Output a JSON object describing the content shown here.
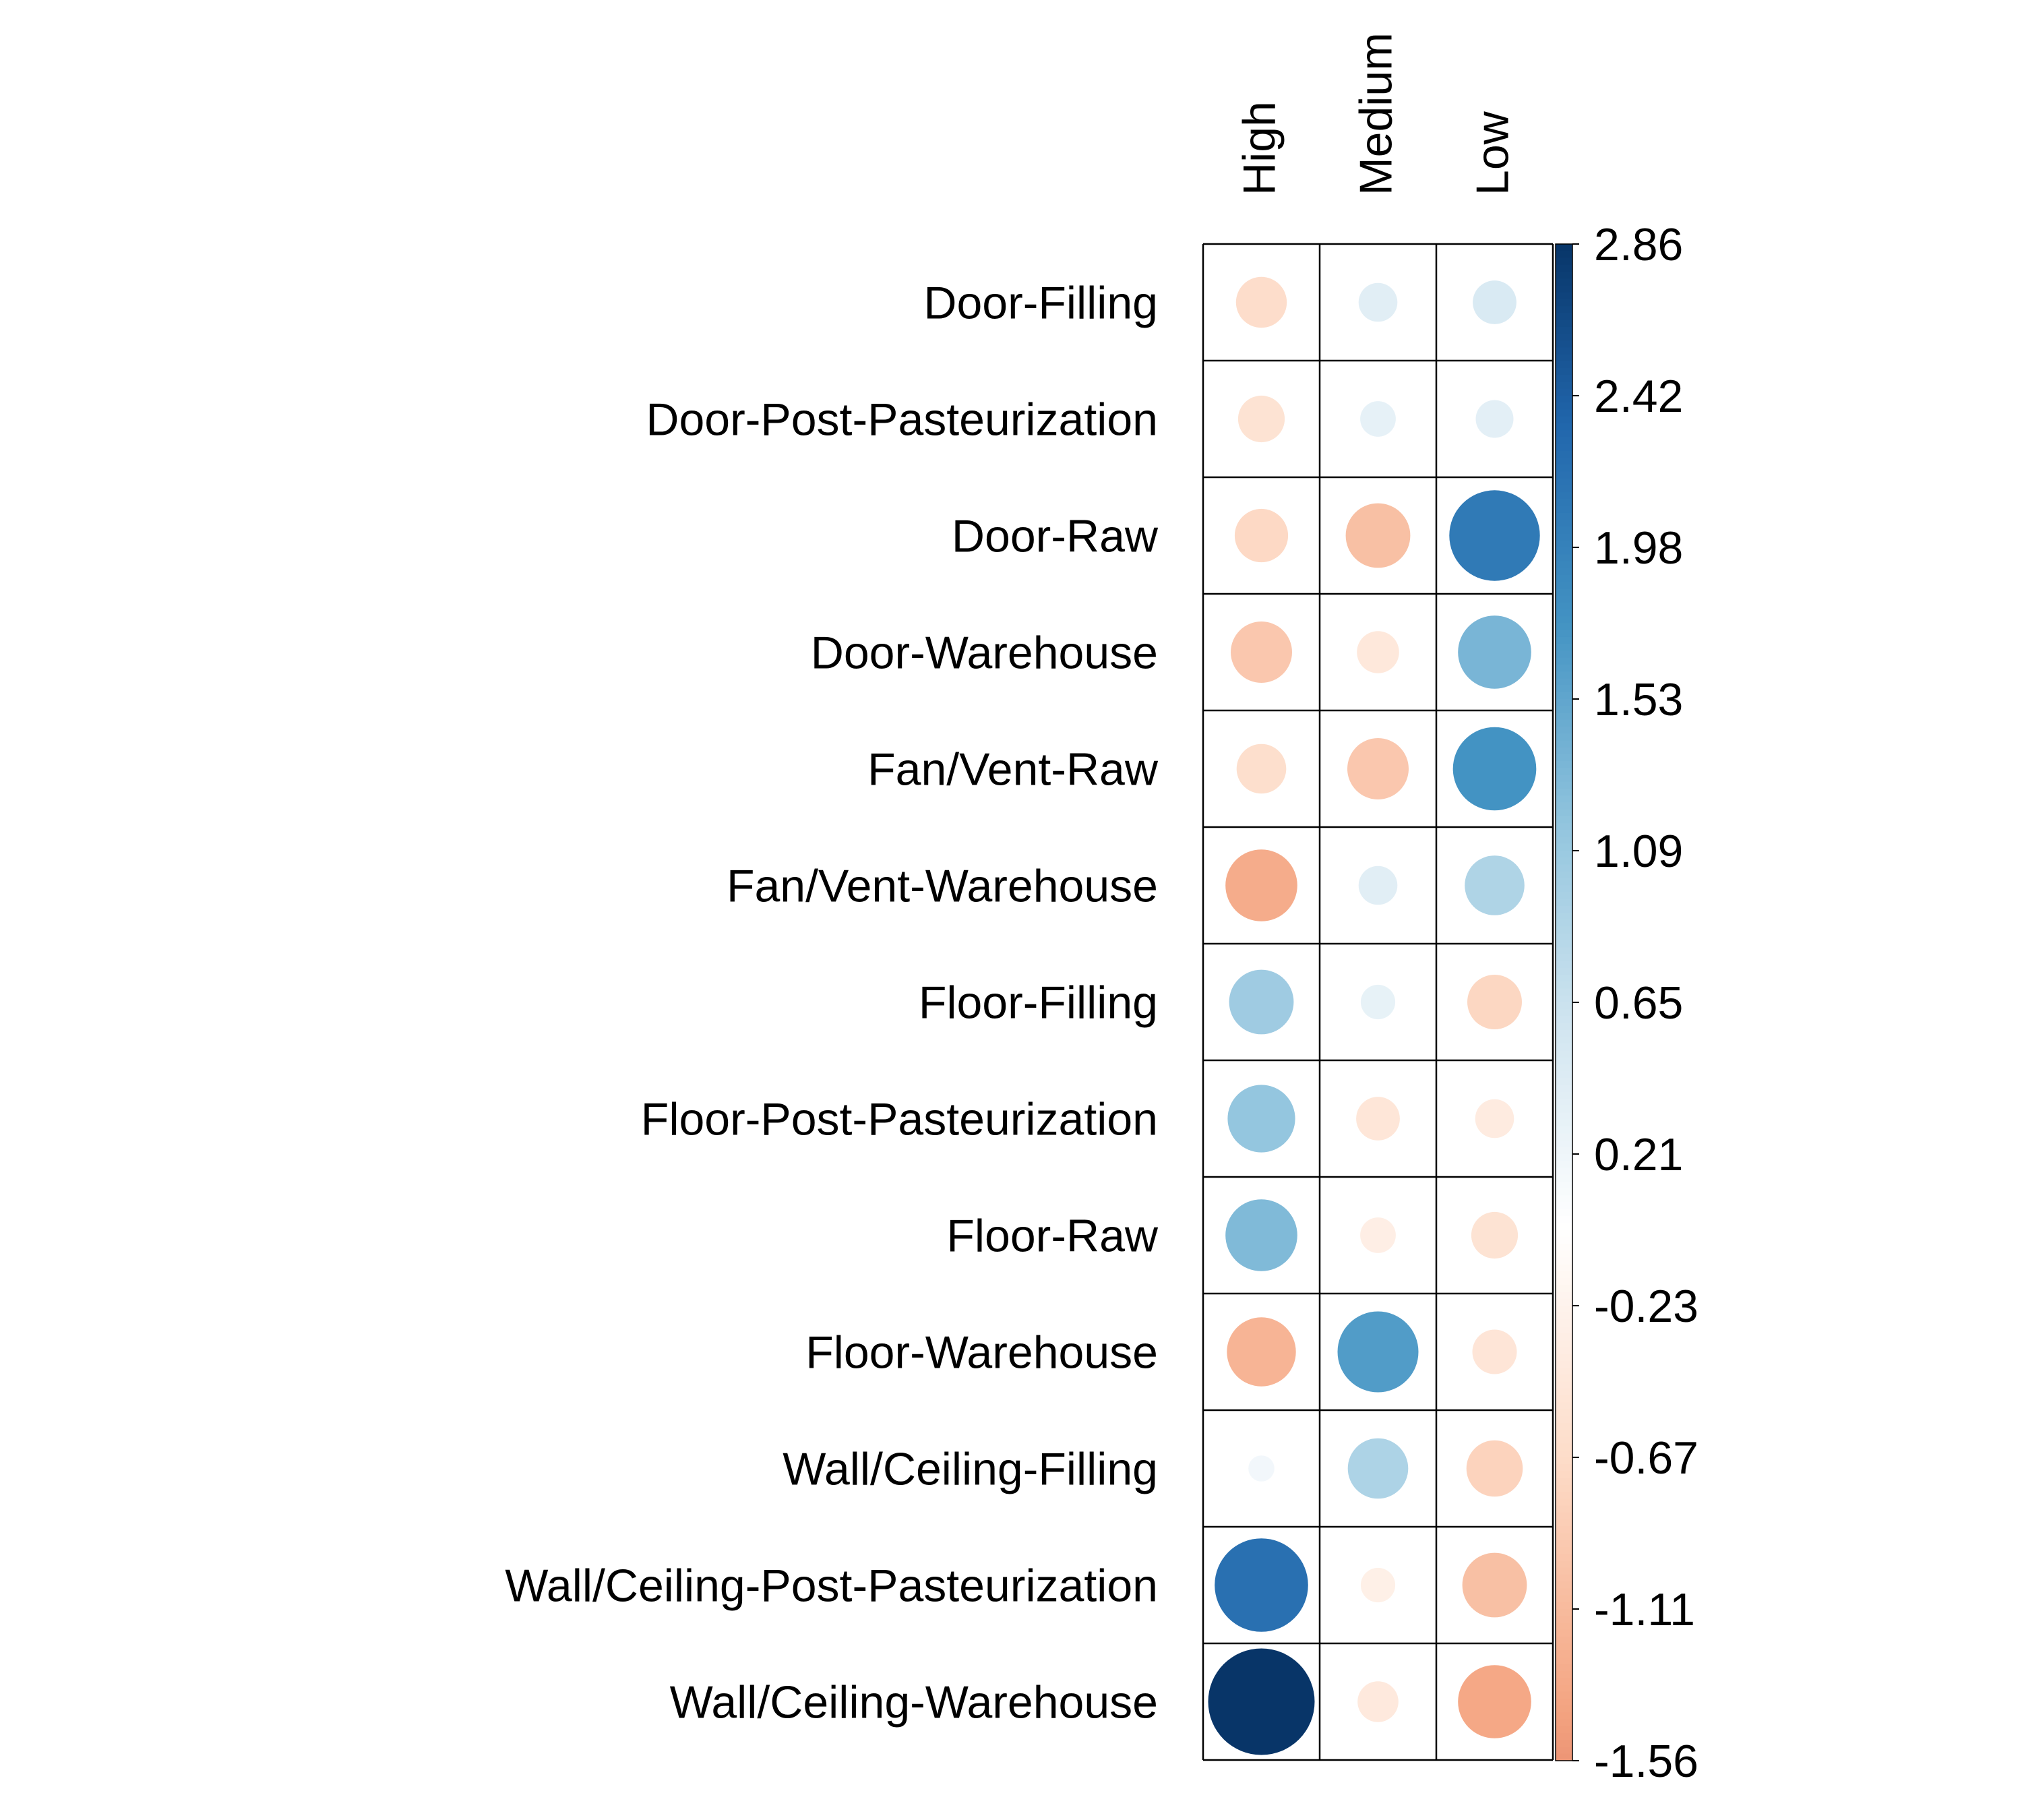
{
  "chart_data": {
    "type": "heatmap",
    "title": "",
    "xlabel": "",
    "ylabel": "",
    "columns": [
      "High",
      "Medium",
      "Low"
    ],
    "rows": [
      "Door-Filling",
      "Door-Post-Pasteurization",
      "Door-Raw",
      "Door-Warehouse",
      "Fan/Vent-Raw",
      "Fan/Vent-Warehouse",
      "Floor-Filling",
      "Floor-Post-Pasteurization",
      "Floor-Raw",
      "Floor-Warehouse",
      "Wall/Ceiling-Filling",
      "Wall/Ceiling-Post-Pasteurization",
      "Wall/Ceiling-Warehouse"
    ],
    "values": [
      [
        -0.65,
        0.38,
        0.48
      ],
      [
        -0.55,
        0.32,
        0.36
      ],
      [
        -0.72,
        -1.05,
        2.07
      ],
      [
        -0.95,
        -0.45,
        1.35
      ],
      [
        -0.62,
        -0.95,
        1.75
      ],
      [
        -1.3,
        0.38,
        0.9
      ],
      [
        1.05,
        0.3,
        -0.75
      ],
      [
        1.15,
        -0.48,
        -0.38
      ],
      [
        1.3,
        -0.32,
        -0.55
      ],
      [
        -1.2,
        1.65,
        -0.5
      ],
      [
        0.17,
        0.92,
        -0.8
      ],
      [
        2.2,
        -0.3,
        -1.05
      ],
      [
        2.86,
        -0.42,
        -1.35
      ]
    ],
    "color_scale": {
      "min": -1.56,
      "max": 2.86,
      "ticks": [
        "2.86",
        "2.42",
        "1.98",
        "1.53",
        "1.09",
        "0.65",
        "0.21",
        "-0.23",
        "-0.67",
        "-1.11",
        "-1.56"
      ],
      "negative_color": "#B2182B",
      "neutral_color": "#FFFFFF",
      "positive_color": "#053061"
    },
    "legend_placement": "right",
    "grid": true
  }
}
